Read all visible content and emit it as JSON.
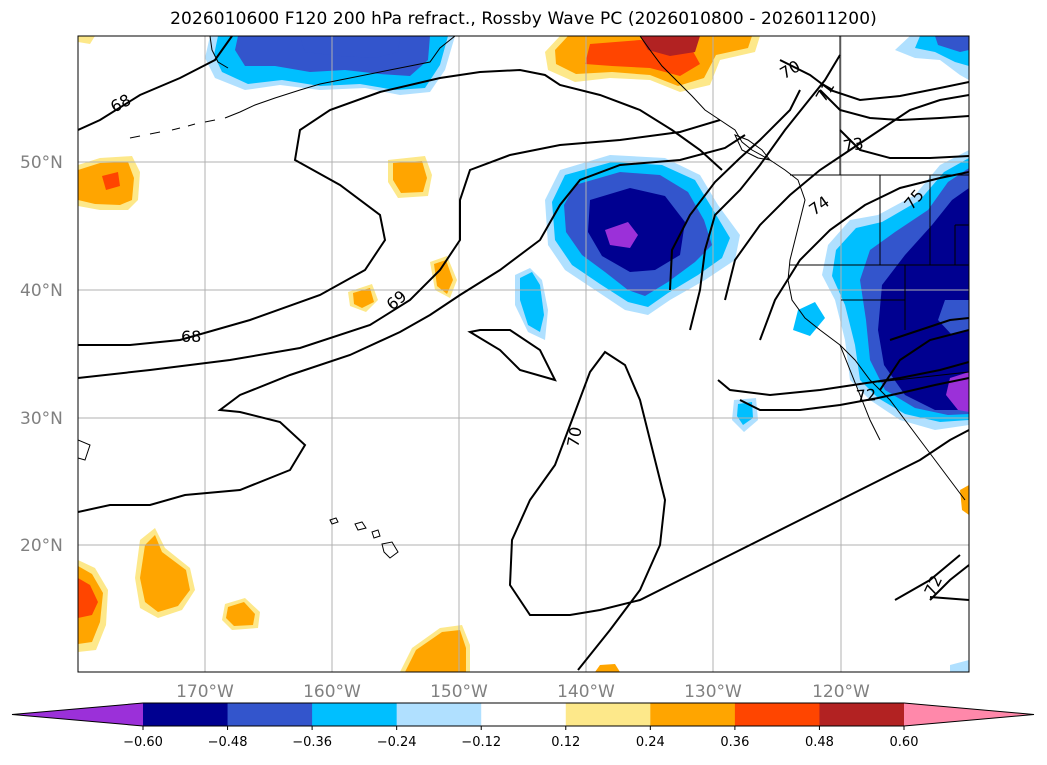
{
  "title": "2026010600 F120 200 hPa refract., Rossby Wave PC (2026010800 - 2026011200)",
  "lat_labels": [
    "50°N",
    "40°N",
    "30°N",
    "20°N"
  ],
  "lon_labels": [
    "170°W",
    "160°W",
    "150°W",
    "140°W",
    "130°W",
    "120°W"
  ],
  "colorbar": {
    "colors": [
      "#9b30d9",
      "#000090",
      "#3355cc",
      "#00bfff",
      "#b0e0ff",
      "#ffffff",
      "#fde88a",
      "#ffa500",
      "#ff4500",
      "#b22222",
      "#ff88aa"
    ],
    "ticks": [
      "−0.60",
      "−0.48",
      "−0.36",
      "−0.24",
      "−0.12",
      "0.12",
      "0.24",
      "0.36",
      "0.48",
      "0.60"
    ]
  },
  "contour_labels": [
    "68",
    "68",
    "69",
    "70",
    "70",
    "71",
    "72",
    "72",
    "73",
    "74",
    "75"
  ]
}
